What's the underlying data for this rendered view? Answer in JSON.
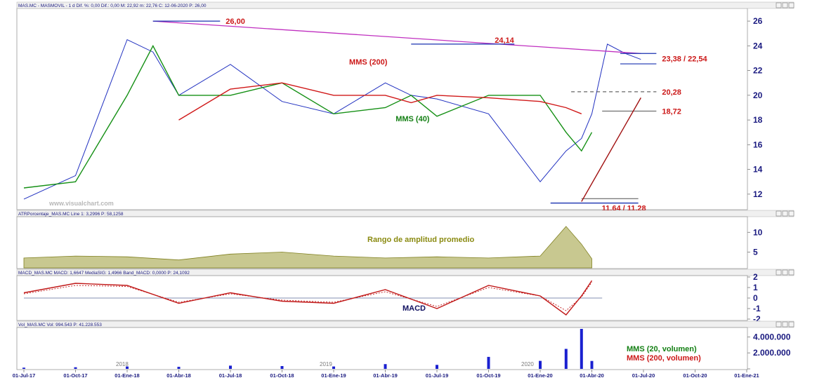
{
  "colors": {
    "price": "#2030c0",
    "mms40": "#159015",
    "mms200": "#d01818",
    "trend": "#c030c0",
    "support": "#1830b0",
    "atr_fill": "#c8c890",
    "atr_line": "#808020",
    "macd": "#c01818",
    "signal": "#c01818",
    "vol": "#1a20d0",
    "axis_text": "#1a1a80",
    "anno_dark": "#222222",
    "anno_red": "#cc1818",
    "anno_green": "#158015",
    "anno_olive": "#8a8a10",
    "anno_navy": "#101060"
  },
  "panels": {
    "price": {
      "header": "MAS.MC - MASMOVIL - 1 d  Dif. %: 0,00  Dif.: 0,00  M: 22,92  m: 22,76  C: 12-06-2020  P: 26,00",
      "watermark": "www.visualchart.com"
    },
    "atr": {
      "header": "ATRPorcentaje_MAS.MC  Line 1: 3,2996  P: 58,1258",
      "label": "Rango de amplitud promedio"
    },
    "macd": {
      "header": "MACD_MAS.MC  MACD: 1,6647  MediaSIG: 1,4966  Band_MACD: 0,0000  P: 24,1092",
      "label": "MACD"
    },
    "vol": {
      "header": "Vol_MAS.MC  Vol: 994.543  P: 41.228.553",
      "label_20": "MMS (20, volumen)",
      "label_200": "MMS (200, volumen)",
      "year_labels": [
        "2018",
        "2019",
        "2020"
      ]
    }
  },
  "annotations": {
    "max": "26,00",
    "resist2": "24,14",
    "range": "23,38 / 22,54",
    "level2028": "20,28",
    "level1872": "18,72",
    "minrange": "11,64 / 11,28",
    "mms200": "MMS (200)",
    "mms40": "MMS (40)"
  },
  "chart_data": [
    {
      "type": "line",
      "title": "MAS.MC - MASMOVIL",
      "x_labels": [
        "01-Jul-17",
        "01-Oct-17",
        "01-Ene-18",
        "01-Abr-18",
        "01-Jul-18",
        "01-Oct-18",
        "01-Ene-19",
        "01-Abr-19",
        "01-Jul-19",
        "01-Oct-19",
        "01-Ene-20",
        "01-Abr-20",
        "01-Jul-20",
        "01-Oct-20",
        "01-Ene-21"
      ],
      "x": [
        0,
        1,
        2,
        2.5,
        3,
        4,
        5,
        6,
        7,
        7.5,
        8,
        9,
        10,
        10.5,
        10.8,
        11,
        11.3,
        11.65,
        11.95
      ],
      "y_ticks": [
        12,
        14,
        16,
        18,
        20,
        22,
        24,
        26
      ],
      "ylim": [
        10.8,
        26.8
      ],
      "series": [
        {
          "name": "MAS.MC",
          "values": [
            11.6,
            13.5,
            24.5,
            23.5,
            20,
            22.5,
            19.5,
            18.5,
            21,
            20,
            19.7,
            18.5,
            13,
            15.5,
            16.5,
            18.5,
            24.14,
            23.38,
            22.9
          ]
        },
        {
          "name": "MMS (40)",
          "values": [
            12.5,
            13,
            20,
            24,
            20,
            20,
            21,
            18.5,
            19,
            20,
            18.3,
            20,
            20,
            17,
            15.5,
            17,
            null,
            null,
            null
          ]
        },
        {
          "name": "MMS (200)",
          "values": [
            null,
            null,
            null,
            null,
            18,
            20.5,
            21,
            20,
            20,
            19.4,
            20,
            19.8,
            19.5,
            19,
            18.5,
            null,
            null,
            null,
            null
          ]
        }
      ],
      "levels": [
        26.0,
        24.14,
        23.38,
        22.54,
        20.28,
        18.72,
        11.64,
        11.28
      ]
    },
    {
      "type": "area",
      "title": "ATRPorcentaje_MAS.MC",
      "y_ticks": [
        5,
        10
      ],
      "ylim": [
        1,
        13.6
      ],
      "x": [
        0,
        1,
        2,
        3,
        4,
        5,
        6,
        7,
        8,
        9,
        10,
        10.5,
        10.8,
        11
      ],
      "series": [
        {
          "name": "Line 1",
          "values": [
            3.5,
            4,
            3.8,
            3,
            4.5,
            5,
            4,
            3.5,
            3.8,
            3.5,
            4,
            11.5,
            7,
            3.3
          ]
        }
      ]
    },
    {
      "type": "line",
      "title": "MACD_MAS.MC",
      "y_ticks": [
        -2,
        -1,
        0,
        1,
        2
      ],
      "ylim": [
        -2,
        2
      ],
      "x": [
        0,
        1,
        2,
        3,
        4,
        5,
        6,
        7,
        8,
        9,
        10,
        10.5,
        10.8,
        11
      ],
      "series": [
        {
          "name": "MACD",
          "values": [
            0.5,
            1.4,
            1.2,
            -0.5,
            0.5,
            -0.3,
            -0.5,
            0.8,
            -1,
            1.2,
            0.2,
            -1.6,
            0.2,
            1.66
          ]
        },
        {
          "name": "MediaSIG",
          "values": [
            0.4,
            1.2,
            1.1,
            -0.4,
            0.4,
            -0.2,
            -0.4,
            0.6,
            -0.8,
            1,
            0.2,
            -1.2,
            0.1,
            1.5
          ]
        }
      ]
    },
    {
      "type": "bar",
      "title": "Vol_MAS.MC",
      "y_ticks": [
        0,
        2000000,
        4000000
      ],
      "y_tick_labels": [
        "",
        "2.000.000",
        "4.000.000"
      ],
      "ylim": [
        0,
        5000000
      ],
      "x": [
        0,
        1,
        2,
        3,
        4,
        5,
        6,
        7,
        8,
        9,
        10,
        10.5,
        10.8,
        11
      ],
      "series": [
        {
          "name": "Vol",
          "values": [
            150000,
            200000,
            300000,
            250000,
            400000,
            350000,
            300000,
            600000,
            500000,
            1500000,
            1000000,
            2500000,
            5000000,
            994543
          ]
        }
      ]
    }
  ]
}
